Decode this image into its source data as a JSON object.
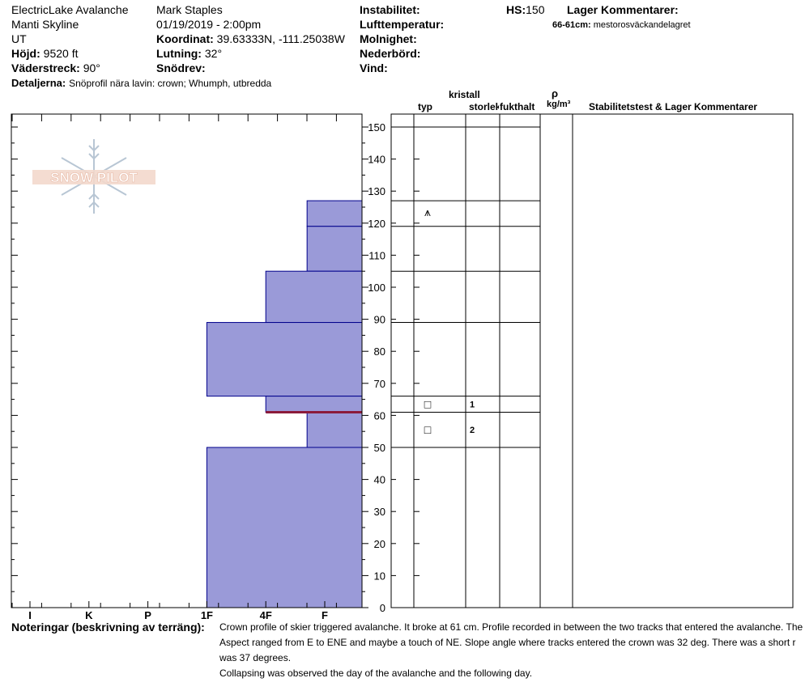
{
  "header": {
    "location_line1": "ElectricLake Avalanche",
    "location_line2": "Manti Skyline",
    "state": "UT",
    "elevation_label": "Höjd:",
    "elevation_value": "9520 ft",
    "aspect_label": "Väderstreck:",
    "aspect_value": "90°",
    "details_label": "Detaljerna:",
    "details_value": "Snöprofil nära lavin: crown; Whumph, utbredda",
    "observer": "Mark Staples",
    "datetime": "01/19/2019 - 2:00pm",
    "coord_label": "Koordinat:",
    "coord_value": "39.63333N, -111.25038W",
    "slope_label": "Lutning:",
    "slope_value": "32°",
    "drift_label": "Snödrev:",
    "instability_label": "Instabilitet:",
    "airtemp_label": "Lufttemperatur:",
    "clouds_label": "Molnighet:",
    "precip_label": "Nederbörd:",
    "wind_label": "Vind:",
    "hs_label": "HS:",
    "hs_value": "150",
    "layer_comments_title": "Lager Kommentarer:",
    "layer_comment_range": "66-61cm:",
    "layer_comment_text": "mestorosväckandelagret"
  },
  "logo": {
    "text": "SNOW PILOT"
  },
  "table_headers": {
    "crystal": "kristall",
    "type": "typ",
    "size": "storlek",
    "moisture": "fukthalt",
    "rho": "ρ",
    "density_unit": "kg/m³",
    "stability": "Stabilitetstest & Lager Kommentarer"
  },
  "crystal_symbols": [
    {
      "depth": 123.5,
      "symbol": "⩚"
    },
    {
      "depth": 63.5,
      "symbol": "□"
    },
    {
      "depth": 55.5,
      "symbol": "□"
    }
  ],
  "size_labels": [
    {
      "depth": 63.5,
      "value": "1"
    },
    {
      "depth": 55.5,
      "value": "2"
    }
  ],
  "chart_data": {
    "type": "bar",
    "orientation": "horizontal",
    "title": "",
    "xlabel": "",
    "ylabel": "",
    "x_categories": [
      "I",
      "K",
      "P",
      "1F",
      "4F",
      "F"
    ],
    "y_ticks": [
      0,
      10,
      20,
      30,
      40,
      50,
      60,
      70,
      80,
      90,
      100,
      110,
      120,
      130,
      140,
      150
    ],
    "ylim": [
      0,
      150
    ],
    "bar_color": "#9a9ad8",
    "edge_color": "#00008b",
    "weak_layer_color": "#8b1a3a",
    "weak_layer_depth": 61,
    "layer_lines": [
      150,
      127,
      119,
      105,
      89,
      66,
      61,
      50
    ],
    "layers": [
      {
        "top": 150,
        "bottom": 127,
        "hardness": 5.7
      },
      {
        "top": 127,
        "bottom": 119,
        "hardness": 4.7
      },
      {
        "top": 119,
        "bottom": 105,
        "hardness": 4.7
      },
      {
        "top": 105,
        "bottom": 89,
        "hardness": 4.0
      },
      {
        "top": 89,
        "bottom": 66,
        "hardness": 3.0
      },
      {
        "top": 66,
        "bottom": 61,
        "hardness": 4.0
      },
      {
        "top": 61,
        "bottom": 50,
        "hardness": 4.7
      },
      {
        "top": 50,
        "bottom": 0,
        "hardness": 3.0
      }
    ]
  },
  "notes": {
    "label": "Noteringar (beskrivning av terräng):",
    "line1": "Crown profile of skier triggered avalanche. It broke at 61 cm. Profile recorded in between the two tracks that entered the avalanche. The",
    "line2": "Aspect ranged from E to ENE and maybe a touch of NE. Slope angle where tracks entered the crown was 32 deg. There was a short r",
    "line3": "was 37 degrees.",
    "line4": "Collapsing was observed the day of the avalanche and the following day."
  }
}
